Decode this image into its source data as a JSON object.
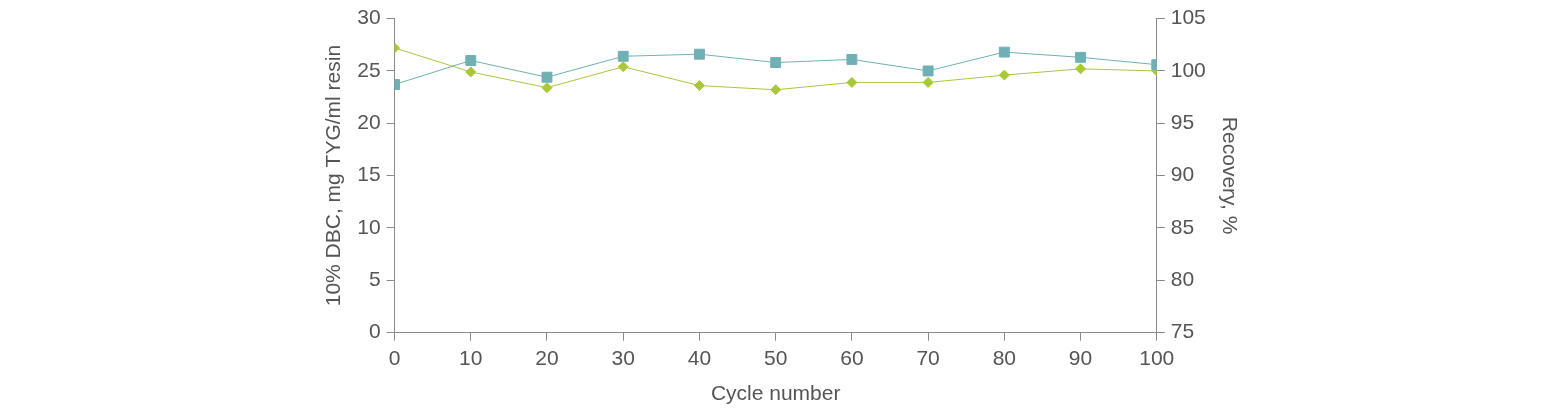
{
  "chart_data": {
    "type": "line",
    "x": [
      0,
      10,
      20,
      30,
      40,
      50,
      60,
      70,
      80,
      90,
      100
    ],
    "xlabel": "Cycle number",
    "ylabel": "10% DBC, mg TYG/ml resin",
    "y2label": "Recovery, %",
    "xlim": [
      0,
      100
    ],
    "xticks": [
      0,
      10,
      20,
      30,
      40,
      50,
      60,
      70,
      80,
      90,
      100
    ],
    "ylim": [
      0,
      30
    ],
    "yticks": [
      0,
      5,
      10,
      15,
      20,
      25,
      30
    ],
    "y2lim": [
      75,
      105
    ],
    "y2ticks": [
      75,
      80,
      85,
      90,
      95,
      100,
      105
    ],
    "grid": false,
    "series": [
      {
        "color": "#6fb0b5",
        "marker": "square",
        "axis": "y",
        "values": [
          23.7,
          26.0,
          24.4,
          26.4,
          26.6,
          25.8,
          26.1,
          25.0,
          26.8,
          26.3,
          25.6
        ]
      },
      {
        "color": "#a8c83a",
        "marker": "diamond",
        "axis": "y2",
        "values": [
          102.2,
          99.9,
          98.4,
          100.4,
          98.6,
          98.2,
          98.9,
          98.9,
          99.6,
          100.2,
          100.0
        ]
      }
    ]
  }
}
